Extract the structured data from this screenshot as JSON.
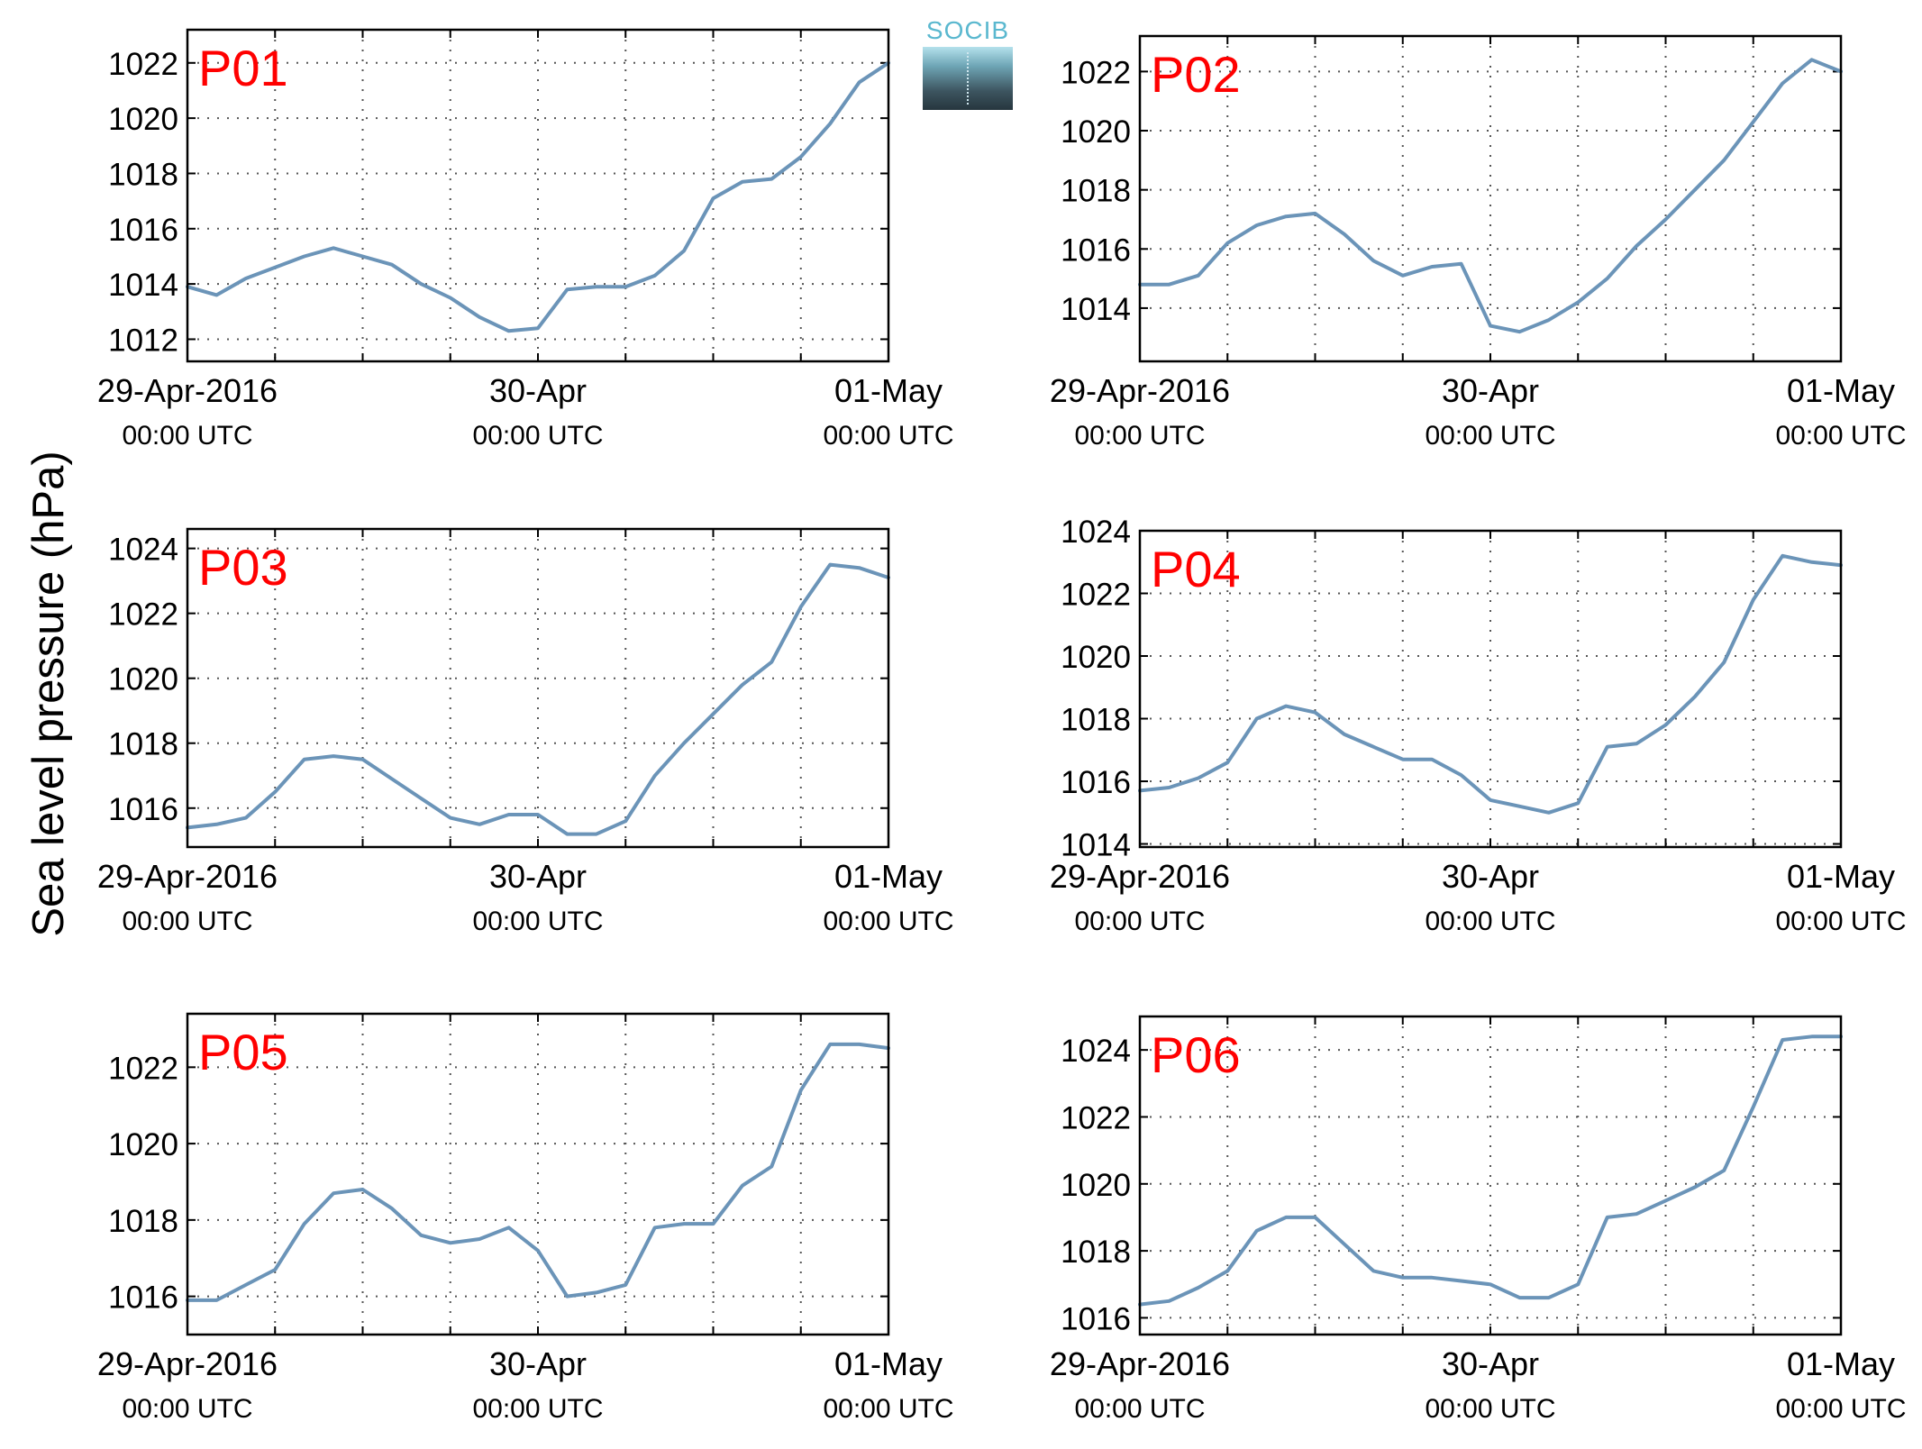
{
  "figure": {
    "ylabel": "Sea level pressure (hPa)",
    "logo_text": "SOCIB"
  },
  "chart_data": [
    {
      "type": "line",
      "station": "P01",
      "x_range": [
        "2016-04-29T00:00Z",
        "2016-05-01T00:00Z"
      ],
      "ylim": [
        1011.2,
        1023.2
      ],
      "yticks": [
        1012,
        1014,
        1016,
        1018,
        1020,
        1022
      ],
      "xtick_labels": [
        [
          "29-Apr-2016",
          "00:00 UTC"
        ],
        [
          "30-Apr",
          "00:00 UTC"
        ],
        [
          "01-May",
          "00:00 UTC"
        ]
      ],
      "grid": "dotted",
      "series": [
        {
          "color": "#6b94b8",
          "x_hours": [
            0,
            2,
            4,
            6,
            8,
            10,
            12,
            14,
            16,
            18,
            20,
            22,
            24,
            26,
            28,
            30,
            32,
            34,
            36,
            38,
            40,
            42,
            44,
            46,
            48
          ],
          "values": [
            1013.9,
            1013.6,
            1014.2,
            1014.6,
            1015.0,
            1015.3,
            1015.0,
            1014.7,
            1014.0,
            1013.5,
            1012.8,
            1012.3,
            1012.4,
            1013.8,
            1013.9,
            1013.9,
            1014.3,
            1015.2,
            1017.1,
            1017.7,
            1017.8,
            1018.6,
            1019.8,
            1021.3,
            1022.0
          ]
        }
      ]
    },
    {
      "type": "line",
      "station": "P02",
      "x_range": [
        "2016-04-29T00:00Z",
        "2016-05-01T00:00Z"
      ],
      "ylim": [
        1012.2,
        1023.2
      ],
      "yticks": [
        1014,
        1016,
        1018,
        1020,
        1022
      ],
      "xtick_labels": [
        [
          "29-Apr-2016",
          "00:00 UTC"
        ],
        [
          "30-Apr",
          "00:00 UTC"
        ],
        [
          "01-May",
          "00:00 UTC"
        ]
      ],
      "grid": "dotted",
      "series": [
        {
          "color": "#6b94b8",
          "x_hours": [
            0,
            2,
            4,
            6,
            8,
            10,
            12,
            14,
            16,
            18,
            20,
            22,
            24,
            26,
            28,
            30,
            32,
            34,
            36,
            38,
            40,
            42,
            44,
            46,
            48
          ],
          "values": [
            1014.8,
            1014.8,
            1015.1,
            1016.2,
            1016.8,
            1017.1,
            1017.2,
            1016.5,
            1015.6,
            1015.1,
            1015.4,
            1015.5,
            1013.4,
            1013.2,
            1013.6,
            1014.2,
            1015.0,
            1016.1,
            1017.0,
            1018.0,
            1019.0,
            1020.3,
            1021.6,
            1022.4,
            1022.0
          ]
        }
      ]
    },
    {
      "type": "line",
      "station": "P03",
      "x_range": [
        "2016-04-29T00:00Z",
        "2016-05-01T00:00Z"
      ],
      "ylim": [
        1014.8,
        1024.6
      ],
      "yticks": [
        1016,
        1018,
        1020,
        1022,
        1024
      ],
      "xtick_labels": [
        [
          "29-Apr-2016",
          "00:00 UTC"
        ],
        [
          "30-Apr",
          "00:00 UTC"
        ],
        [
          "01-May",
          "00:00 UTC"
        ]
      ],
      "grid": "dotted",
      "series": [
        {
          "color": "#6b94b8",
          "x_hours": [
            0,
            2,
            4,
            6,
            8,
            10,
            12,
            14,
            16,
            18,
            20,
            22,
            24,
            26,
            28,
            30,
            32,
            34,
            36,
            38,
            40,
            42,
            44,
            46,
            48
          ],
          "values": [
            1015.4,
            1015.5,
            1015.7,
            1016.5,
            1017.5,
            1017.6,
            1017.5,
            1016.9,
            1016.3,
            1015.7,
            1015.5,
            1015.8,
            1015.8,
            1015.2,
            1015.2,
            1015.6,
            1017.0,
            1018.0,
            1018.9,
            1019.8,
            1020.5,
            1022.2,
            1023.5,
            1023.4,
            1023.1
          ]
        }
      ]
    },
    {
      "type": "line",
      "station": "P04",
      "x_range": [
        "2016-04-29T00:00Z",
        "2016-05-01T00:00Z"
      ],
      "ylim": [
        1013.9,
        1024.0
      ],
      "yticks": [
        1014,
        1016,
        1018,
        1020,
        1022,
        1024
      ],
      "xtick_labels": [
        [
          "29-Apr-2016",
          "00:00 UTC"
        ],
        [
          "30-Apr",
          "00:00 UTC"
        ],
        [
          "01-May",
          "00:00 UTC"
        ]
      ],
      "grid": "dotted",
      "series": [
        {
          "color": "#6b94b8",
          "x_hours": [
            0,
            2,
            4,
            6,
            8,
            10,
            12,
            14,
            16,
            18,
            20,
            22,
            24,
            26,
            28,
            30,
            32,
            34,
            36,
            38,
            40,
            42,
            44,
            46,
            48
          ],
          "values": [
            1015.7,
            1015.8,
            1016.1,
            1016.6,
            1018.0,
            1018.4,
            1018.2,
            1017.5,
            1017.1,
            1016.7,
            1016.7,
            1016.2,
            1015.4,
            1015.2,
            1015.0,
            1015.3,
            1017.1,
            1017.2,
            1017.8,
            1018.7,
            1019.8,
            1021.8,
            1023.2,
            1023.0,
            1022.9
          ]
        }
      ]
    },
    {
      "type": "line",
      "station": "P05",
      "x_range": [
        "2016-04-29T00:00Z",
        "2016-05-01T00:00Z"
      ],
      "ylim": [
        1015.0,
        1023.4
      ],
      "yticks": [
        1016,
        1018,
        1020,
        1022
      ],
      "xtick_labels": [
        [
          "29-Apr-2016",
          "00:00 UTC"
        ],
        [
          "30-Apr",
          "00:00 UTC"
        ],
        [
          "01-May",
          "00:00 UTC"
        ]
      ],
      "grid": "dotted",
      "series": [
        {
          "color": "#6b94b8",
          "x_hours": [
            0,
            2,
            4,
            6,
            8,
            10,
            12,
            14,
            16,
            18,
            20,
            22,
            24,
            26,
            28,
            30,
            32,
            34,
            36,
            38,
            40,
            42,
            44,
            46,
            48
          ],
          "values": [
            1015.9,
            1015.9,
            1016.3,
            1016.7,
            1017.9,
            1018.7,
            1018.8,
            1018.3,
            1017.6,
            1017.4,
            1017.5,
            1017.8,
            1017.2,
            1016.0,
            1016.1,
            1016.3,
            1017.8,
            1017.9,
            1017.9,
            1018.9,
            1019.4,
            1021.4,
            1022.6,
            1022.6,
            1022.5
          ]
        }
      ]
    },
    {
      "type": "line",
      "station": "P06",
      "x_range": [
        "2016-04-29T00:00Z",
        "2016-05-01T00:00Z"
      ],
      "ylim": [
        1015.5,
        1025.0
      ],
      "yticks": [
        1016,
        1018,
        1020,
        1022,
        1024
      ],
      "xtick_labels": [
        [
          "29-Apr-2016",
          "00:00 UTC"
        ],
        [
          "30-Apr",
          "00:00 UTC"
        ],
        [
          "01-May",
          "00:00 UTC"
        ]
      ],
      "grid": "dotted",
      "series": [
        {
          "color": "#6b94b8",
          "x_hours": [
            0,
            2,
            4,
            6,
            8,
            10,
            12,
            14,
            16,
            18,
            20,
            22,
            24,
            26,
            28,
            30,
            32,
            34,
            36,
            38,
            40,
            42,
            44,
            46,
            48
          ],
          "values": [
            1016.4,
            1016.5,
            1016.9,
            1017.4,
            1018.6,
            1019.0,
            1019.0,
            1018.2,
            1017.4,
            1017.2,
            1017.2,
            1017.1,
            1017.0,
            1016.6,
            1016.6,
            1017.0,
            1019.0,
            1019.1,
            1019.5,
            1019.9,
            1020.4,
            1022.3,
            1024.3,
            1024.4,
            1024.4
          ]
        }
      ]
    }
  ]
}
